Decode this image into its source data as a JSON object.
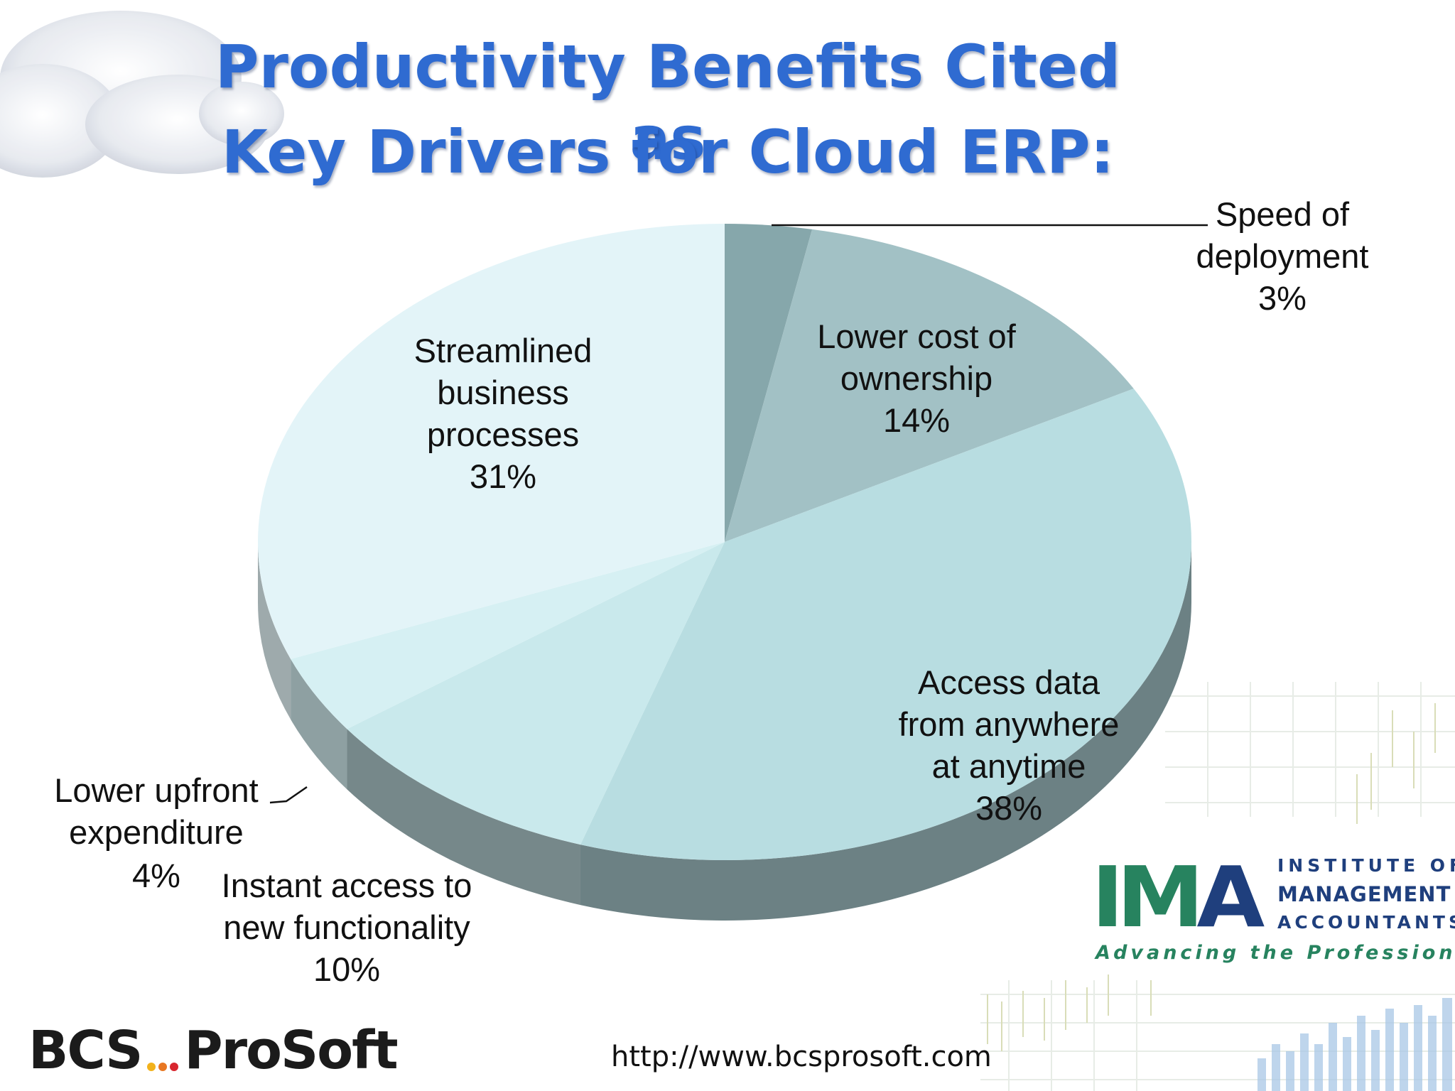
{
  "title_line1": "Productivity Benefits Cited as",
  "title_line2": "Key Drivers for Cloud ERP:",
  "chart_data": {
    "type": "pie",
    "title": "Productivity Benefits Cited as Key Drivers for Cloud ERP:",
    "start": "12 o'clock, clockwise",
    "slices": [
      {
        "label": "Speed of deployment",
        "label_lines": [
          "Speed of",
          "deployment"
        ],
        "value": 3,
        "value_label": "3%",
        "color": "#86a7ab"
      },
      {
        "label": "Lower cost of ownership",
        "label_lines": [
          "Lower cost of",
          "ownership"
        ],
        "value": 14,
        "value_label": "14%",
        "color": "#a2c1c5"
      },
      {
        "label": "Access data from anywhere at anytime",
        "label_lines": [
          "Access data",
          "from anywhere",
          "at anytime"
        ],
        "value": 38,
        "value_label": "38%",
        "color": "#b8dde1"
      },
      {
        "label": "Instant access to new functionality",
        "label_lines": [
          "Instant access to",
          "new functionality"
        ],
        "value": 10,
        "value_label": "10%",
        "color": "#c9e9ec"
      },
      {
        "label": "Lower upfront expenditure",
        "label_lines": [
          "Lower upfront",
          "expenditure"
        ],
        "value": 4,
        "value_label": "4%",
        "color": "#d6f0f3"
      },
      {
        "label": "Streamlined business processes",
        "label_lines": [
          "Streamlined",
          "business",
          "processes"
        ],
        "value": 31,
        "value_label": "31%",
        "color": "#e3f4f8"
      }
    ]
  },
  "footer": {
    "bcs_left": "BCS",
    "bcs_right": "ProSoft",
    "dot_colors": [
      "#f2b21c",
      "#e87722",
      "#d8262e"
    ],
    "url": "http://www.bcsprosoft.com"
  },
  "ima": {
    "letters_im": "IM",
    "letters_a": "A",
    "line1": "INSTITUTE OF",
    "line2": "MANAGEMENT",
    "line3": "ACCOUNTANTS",
    "tagline": "Advancing the Profession™",
    "green": "#27835f",
    "navy": "#1f3f7d"
  }
}
